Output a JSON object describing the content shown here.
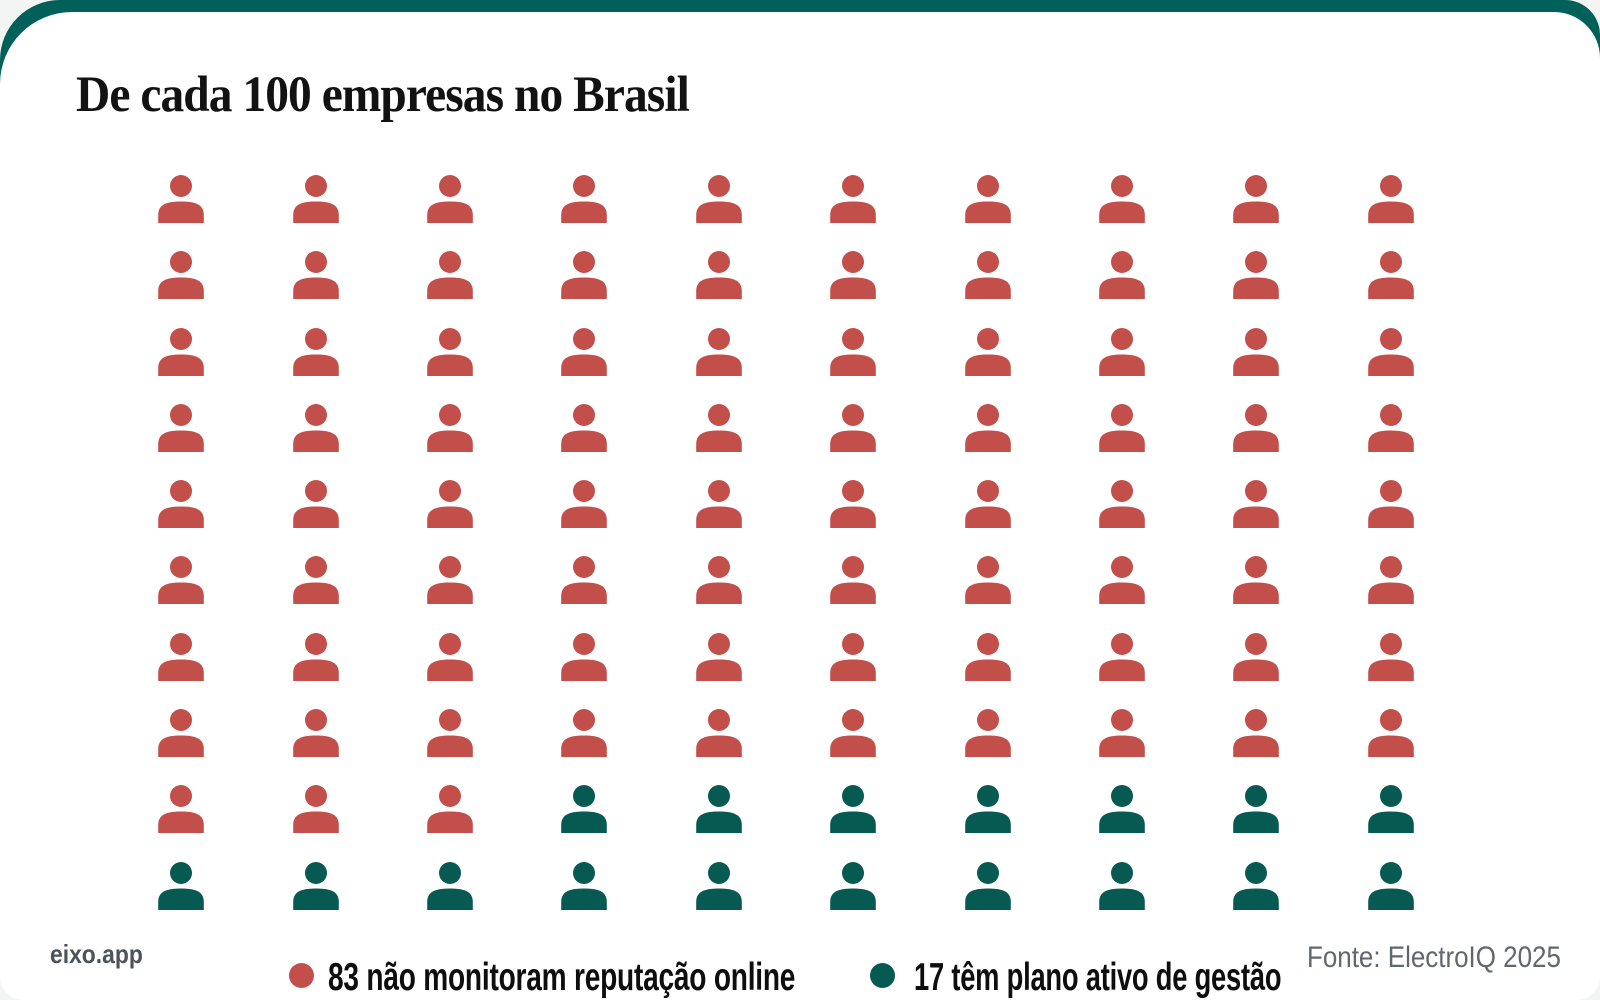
{
  "title": "De cada 100 empresas no Brasil",
  "brand": "eixo.app",
  "source": "Fonte: ElectroIQ 2025",
  "colors": {
    "banner": "#01615a",
    "page_bg": "#f3f4f4",
    "card": "#ffffff"
  },
  "legend": [
    {
      "label": "83 não monitoram reputação online",
      "color": "#c24f4a"
    },
    {
      "label": "17 têm plano ativo de gestão",
      "color": "#075a51"
    }
  ],
  "chart_data": {
    "type": "pictogram",
    "title": "De cada 100 empresas no Brasil",
    "total_icons": 100,
    "grid": {
      "columns": 10,
      "rows": 10
    },
    "icon": "person",
    "fill_order": "row-major-left-to-right-top-to-bottom",
    "series": [
      {
        "name": "não monitoram reputação online",
        "value": 83,
        "color": "#c24f4a"
      },
      {
        "name": "têm plano ativo de gestão",
        "value": 17,
        "color": "#075a51"
      }
    ]
  }
}
